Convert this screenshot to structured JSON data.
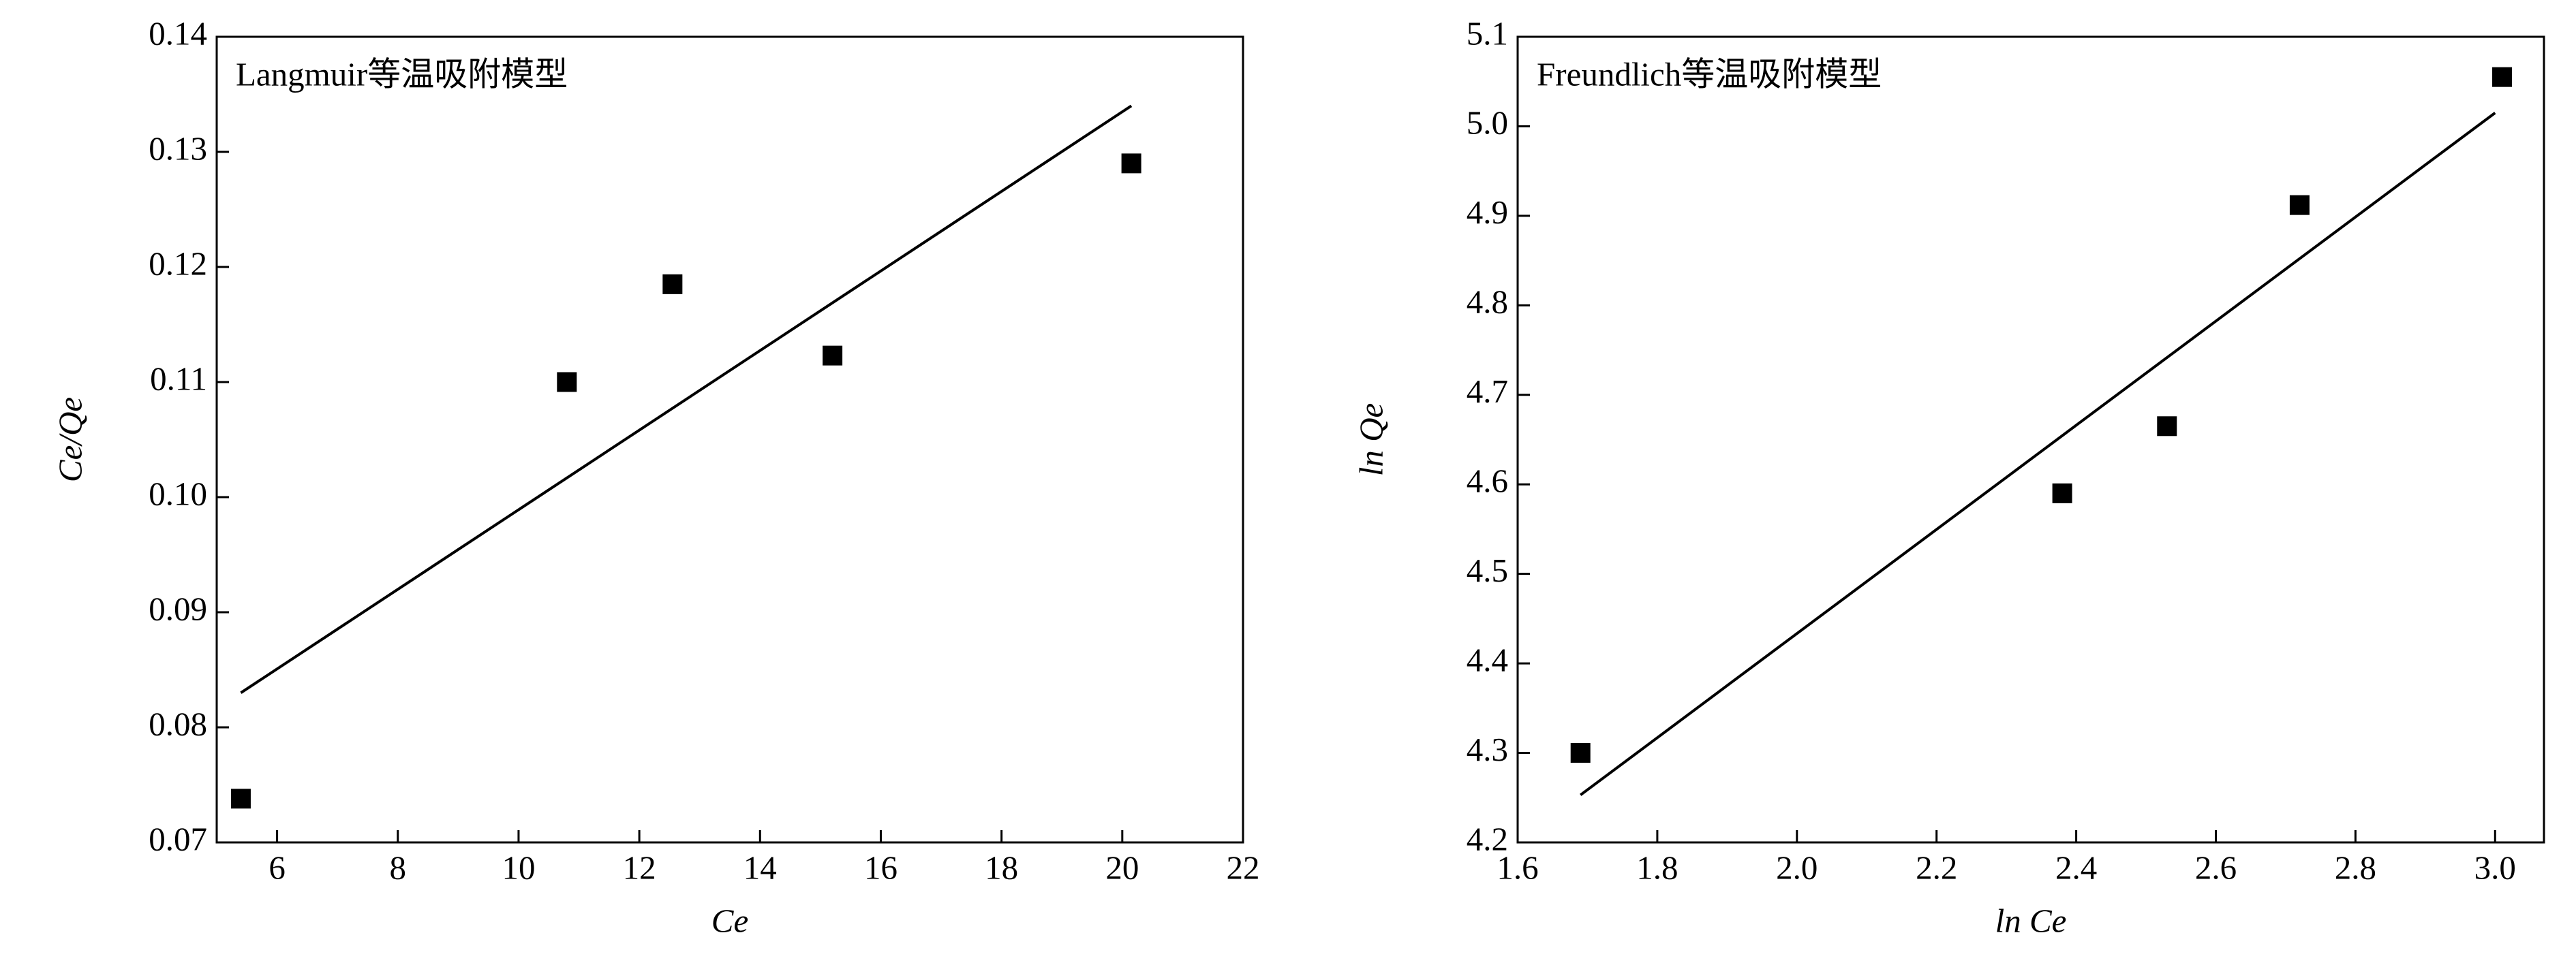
{
  "chart_data": [
    {
      "type": "scatter",
      "title": "Langmuir等温吸附模型",
      "xlabel": "Ce",
      "ylabel": "Ce/Qe",
      "xlim": [
        5,
        22
      ],
      "ylim": [
        0.07,
        0.14
      ],
      "xticks": [
        6,
        8,
        10,
        12,
        14,
        16,
        18,
        20,
        22
      ],
      "yticks": [
        0.07,
        0.08,
        0.09,
        {
          "value": 0.1,
          "label": "0.10"
        },
        0.11,
        0.12,
        0.13,
        0.14
      ],
      "color": "#000000",
      "points": {
        "x": [
          5.4,
          10.8,
          12.55,
          15.2,
          20.15
        ],
        "values": [
          0.0738,
          0.11,
          0.1185,
          0.1123,
          0.129
        ]
      },
      "fit": {
        "x": [
          5.4,
          20.15
        ],
        "values": [
          0.083,
          0.134
        ]
      }
    },
    {
      "type": "scatter",
      "title": "Freundlich等温吸附模型",
      "xlabel": "ln Ce",
      "ylabel": "ln Qe",
      "xlim": [
        1.6,
        3.07
      ],
      "ylim": [
        4.2,
        5.1
      ],
      "xticks": [
        1.6,
        1.8,
        {
          "value": 2,
          "label": "2.0"
        },
        2.2,
        2.4,
        2.6,
        2.8,
        {
          "value": 3,
          "label": "3.0"
        }
      ],
      "yticks": [
        4.2,
        4.3,
        4.4,
        4.5,
        4.6,
        4.7,
        4.8,
        4.9,
        {
          "value": 5,
          "label": "5.0"
        },
        5.1
      ],
      "color": "#000000",
      "points": {
        "x": [
          1.69,
          2.38,
          2.53,
          2.72,
          3.01
        ],
        "values": [
          4.3,
          4.59,
          4.665,
          4.912,
          5.055
        ]
      },
      "fit": {
        "x": [
          1.69,
          3.0
        ],
        "values": [
          4.253,
          5.015
        ]
      }
    }
  ]
}
